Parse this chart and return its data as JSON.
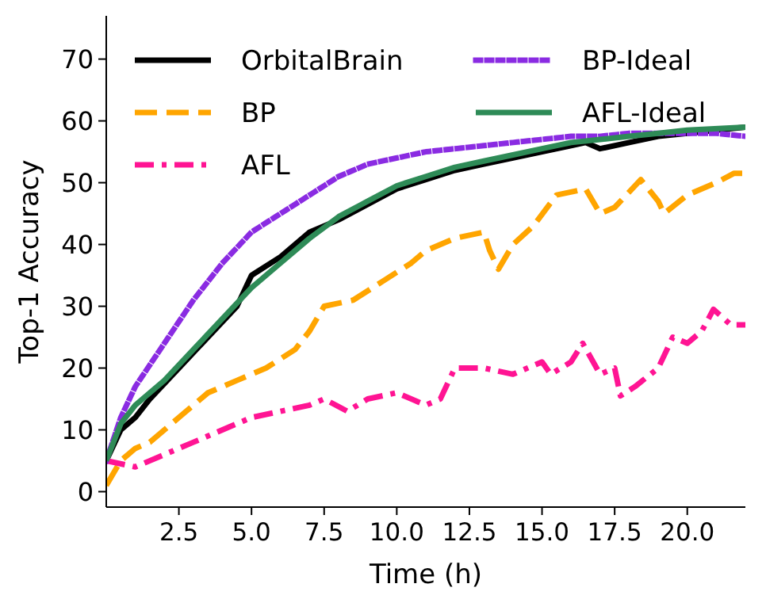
{
  "chart_data": {
    "type": "line",
    "xlabel": "Time (h)",
    "ylabel": "Top-1 Accuracy",
    "xlim": [
      0,
      22
    ],
    "ylim": [
      -2.5,
      77
    ],
    "xticks": [
      2.5,
      {
        "value": 5,
        "label": "5.0"
      },
      {
        "value": 7.5,
        "label": "7.5"
      },
      {
        "value": 10,
        "label": "10.0"
      },
      12.5,
      {
        "value": 15,
        "label": "15.0"
      },
      17.5,
      {
        "value": 20,
        "label": "20.0"
      }
    ],
    "yticks": [
      0,
      10,
      20,
      30,
      40,
      50,
      60,
      70
    ],
    "grid": false,
    "legend": "top left",
    "series": [
      {
        "name": "OrbitalBrain",
        "color": "#000000",
        "line_style": "solid",
        "x": [
          0,
          0.5,
          1,
          1.5,
          2.5,
          3.5,
          4.5,
          5,
          6,
          7,
          8,
          9,
          10,
          11,
          12,
          13,
          14,
          15,
          16,
          16.5,
          17,
          18,
          19,
          20,
          21,
          22
        ],
        "values": [
          5,
          10,
          12,
          15,
          20,
          25,
          30,
          35,
          38,
          42,
          44,
          46.5,
          49,
          50.5,
          52,
          53,
          54,
          55,
          56,
          56.5,
          55.5,
          56.5,
          57.5,
          58,
          58.5,
          59
        ]
      },
      {
        "name": "BP",
        "color": "#ffa500",
        "line_style": "dashed",
        "x": [
          0,
          0.5,
          1,
          1.5,
          2.5,
          3.5,
          4.5,
          5.5,
          6.5,
          7,
          7.5,
          8.5,
          9.5,
          10.5,
          11,
          12,
          13,
          13.2,
          13.5,
          14,
          14.7,
          15.5,
          16.5,
          17,
          17.5,
          18.4,
          19,
          19.2,
          20,
          21,
          21.6,
          22
        ],
        "values": [
          1,
          5,
          7,
          8,
          12,
          16,
          18,
          20,
          23,
          26,
          30,
          31,
          34,
          37,
          39,
          41,
          42,
          39,
          36,
          40,
          43,
          48,
          49,
          45,
          46,
          50.5,
          47,
          45,
          48,
          50,
          51.5,
          51.5
        ]
      },
      {
        "name": "AFL",
        "color": "#ff1493",
        "line_style": "dashdot",
        "x": [
          0,
          1,
          2,
          3,
          3.5,
          4,
          5,
          6,
          7,
          7.5,
          8.3,
          9,
          10,
          11,
          11.5,
          12,
          13,
          14,
          15,
          15.3,
          16,
          16.4,
          17,
          17.5,
          17.7,
          18.2,
          19,
          19.5,
          20,
          20.5,
          20.9,
          21.5,
          22
        ],
        "values": [
          5,
          4,
          6,
          8,
          9,
          10,
          12,
          13,
          14,
          15,
          13,
          15,
          16,
          14,
          15,
          20,
          20,
          19,
          21,
          19,
          21,
          24,
          19,
          20,
          15.5,
          17,
          20,
          25,
          24,
          26,
          29.5,
          27,
          27
        ]
      },
      {
        "name": "BP-Ideal",
        "color": "#8a2be2",
        "line_style": "dotted",
        "x": [
          0,
          0.5,
          1,
          2,
          3,
          4,
          5,
          6,
          7,
          8,
          9,
          10,
          11,
          12,
          13,
          14,
          15,
          16,
          17,
          18,
          19,
          20,
          21,
          22
        ],
        "values": [
          5,
          12,
          17,
          24,
          31,
          37,
          42,
          45,
          48,
          51,
          53,
          54,
          55,
          55.5,
          56,
          56.5,
          57,
          57.5,
          57.5,
          58,
          58,
          58,
          58,
          57.5
        ]
      },
      {
        "name": "AFL-Ideal",
        "color": "#2e8b57",
        "line_style": "solid",
        "x": [
          0,
          0.5,
          1,
          2,
          3,
          4,
          5,
          6,
          7,
          8,
          9,
          10,
          11,
          12,
          13,
          14,
          15,
          16,
          17,
          18,
          19,
          20,
          22
        ],
        "values": [
          5,
          11,
          14,
          18,
          23,
          28,
          33,
          37,
          41,
          44.5,
          47,
          49.5,
          51,
          52.5,
          53.5,
          54.5,
          55.5,
          56.5,
          57,
          57.5,
          58,
          58.5,
          59
        ]
      }
    ]
  }
}
